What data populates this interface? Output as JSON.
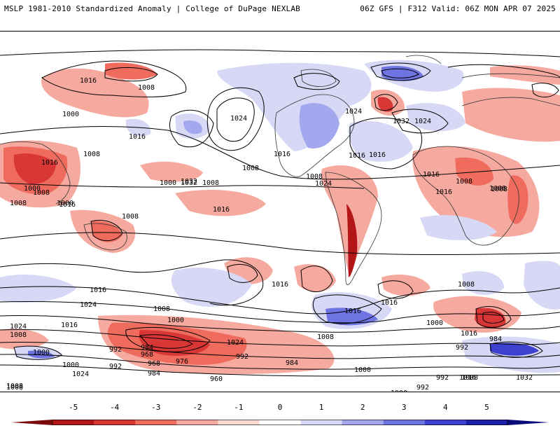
{
  "header": {
    "left": "MSLP 1981-2010 Standardized Anomaly | College of DuPage NEXLAB",
    "right": "06Z GFS | F312 Valid: 06Z MON APR 07 2025"
  },
  "colorbar": {
    "ticks": [
      "-5",
      "-4",
      "-3",
      "-2",
      "-1",
      "0",
      "1",
      "2",
      "3",
      "4",
      "5"
    ],
    "colors": [
      "#7a0a0a",
      "#b21616",
      "#d93636",
      "#ee6b5e",
      "#f6a99f",
      "#fbd8d2",
      "#ffffff",
      "#d6d8f5",
      "#a3a8ee",
      "#6e74e2",
      "#3c41cf",
      "#1e1fa8",
      "#0a0a78"
    ]
  },
  "contour_labels": [
    "1016",
    "1008",
    "1000",
    "1024",
    "1024",
    "1032",
    "1024",
    "1016",
    "1008",
    "1016",
    "1008",
    "1016",
    "1000",
    "1008",
    "1016",
    "1032",
    "1008",
    "1016",
    "1024",
    "1016",
    "1032",
    "1016",
    "1016",
    "1008",
    "1008",
    "1016",
    "1008",
    "1008",
    "1000",
    "1008",
    "1008",
    "1000",
    "1016",
    "1008",
    "1024",
    "1016",
    "1024",
    "1008",
    "1016",
    "1008",
    "1000",
    "1024",
    "1016",
    "1008",
    "1000",
    "1016",
    "992",
    "984",
    "968",
    "976",
    "992",
    "1000",
    "1024",
    "984",
    "968",
    "960",
    "992",
    "984",
    "992",
    "1008",
    "1000",
    "1016",
    "1008",
    "1016",
    "1000",
    "992",
    "1016",
    "984",
    "992",
    "1000",
    "1024",
    "1032",
    "1016",
    "1008",
    "1032",
    "1008",
    "976",
    "984",
    "1000"
  ]
}
